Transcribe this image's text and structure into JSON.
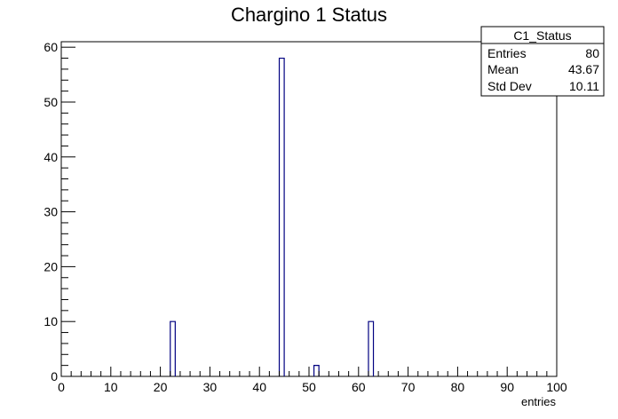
{
  "chart_data": {
    "type": "bar",
    "title": "Chargino 1 Status",
    "xlabel": "entries",
    "ylabel": "",
    "xlim": [
      0,
      100
    ],
    "ylim": [
      0,
      61
    ],
    "x_ticks": [
      0,
      10,
      20,
      30,
      40,
      50,
      60,
      70,
      80,
      90,
      100
    ],
    "y_ticks": [
      0,
      10,
      20,
      30,
      40,
      50,
      60
    ],
    "bin_width": 1,
    "bins": [
      {
        "x_low": 22,
        "x_high": 23,
        "value": 10
      },
      {
        "x_low": 44,
        "x_high": 45,
        "value": 58
      },
      {
        "x_low": 51,
        "x_high": 52,
        "value": 2
      },
      {
        "x_low": 62,
        "x_high": 63,
        "value": 10
      }
    ],
    "line_color": "#000080",
    "grid": false
  },
  "stats": {
    "name": "C1_Status",
    "rows": [
      {
        "label": "Entries",
        "value": "80"
      },
      {
        "label": "Mean",
        "value": "43.67"
      },
      {
        "label": "Std Dev",
        "value": "10.11"
      }
    ]
  }
}
